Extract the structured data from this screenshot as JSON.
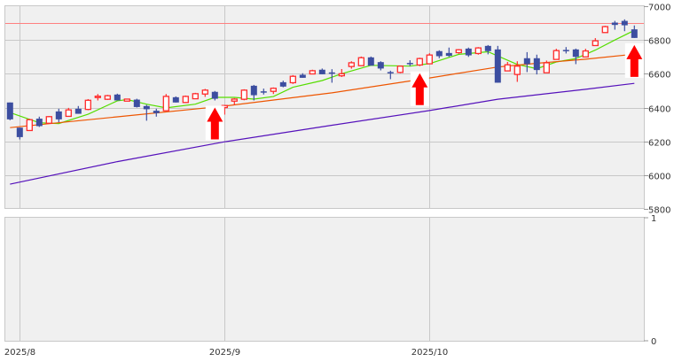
{
  "chart_data": {
    "type": "candlestick",
    "price_axis": {
      "ylim": [
        5800,
        7000
      ],
      "ticks": [
        "7000",
        "6800",
        "6600",
        "6400",
        "6200",
        "6000",
        "5800"
      ],
      "position": "right",
      "grid": true
    },
    "sub_axis": {
      "ticks": [
        "1",
        "0"
      ],
      "ylim": [
        0,
        1
      ]
    },
    "date_labels": [
      {
        "label": "2025/8",
        "candle": 2
      },
      {
        "label": "2025/9",
        "candle": 23
      },
      {
        "label": "2025/10",
        "candle": 44
      }
    ],
    "reference_line": {
      "value": 6900,
      "color": "#ff8080"
    },
    "colors": {
      "up": "#ff2a2a",
      "down": "#3c4ea0",
      "background": "#f0f0f0",
      "grid": "#c8c8c8",
      "arrow": "#ff0000"
    },
    "candles": [
      [
        6430,
        6430,
        6325,
        6330
      ],
      [
        6281,
        6281,
        6211,
        6225
      ],
      [
        6264,
        6333,
        6264,
        6328
      ],
      [
        6334,
        6346,
        6285,
        6290
      ],
      [
        6307,
        6350,
        6305,
        6346
      ],
      [
        6377,
        6393,
        6313,
        6330
      ],
      [
        6348,
        6398,
        6348,
        6386
      ],
      [
        6393,
        6409,
        6363,
        6363
      ],
      [
        6389,
        6450,
        6384,
        6443
      ],
      [
        6463,
        6480,
        6442,
        6467
      ],
      [
        6449,
        6475,
        6445,
        6470
      ],
      [
        6477,
        6482,
        6442,
        6442
      ],
      [
        6438,
        6451,
        6438,
        6450
      ],
      [
        6447,
        6452,
        6400,
        6403
      ],
      [
        6409,
        6416,
        6322,
        6390
      ],
      [
        6381,
        6393,
        6346,
        6367
      ],
      [
        6381,
        6480,
        6381,
        6466
      ],
      [
        6461,
        6466,
        6430,
        6430
      ],
      [
        6430,
        6471,
        6428,
        6466
      ],
      [
        6452,
        6487,
        6450,
        6482
      ],
      [
        6480,
        6510,
        6463,
        6503
      ],
      [
        6493,
        6498,
        6442,
        6452
      ],
      [
        6400,
        6414,
        6358,
        6412
      ],
      [
        6438,
        6456,
        6414,
        6450
      ],
      [
        6449,
        6508,
        6443,
        6503
      ],
      [
        6529,
        6534,
        6442,
        6473
      ],
      [
        6496,
        6512,
        6477,
        6492
      ],
      [
        6496,
        6519,
        6480,
        6514
      ],
      [
        6550,
        6559,
        6520,
        6524
      ],
      [
        6547,
        6592,
        6540,
        6585
      ],
      [
        6594,
        6603,
        6576,
        6576
      ],
      [
        6599,
        6624,
        6598,
        6618
      ],
      [
        6624,
        6631,
        6597,
        6597
      ],
      [
        6608,
        6627,
        6547,
        6600
      ],
      [
        6588,
        6628,
        6581,
        6600
      ],
      [
        6643,
        6674,
        6630,
        6665
      ],
      [
        6648,
        6702,
        6648,
        6695
      ],
      [
        6697,
        6702,
        6648,
        6648
      ],
      [
        6669,
        6674,
        6620,
        6631
      ],
      [
        6610,
        6618,
        6568,
        6607
      ],
      [
        6608,
        6645,
        6603,
        6645
      ],
      [
        6664,
        6680,
        6645,
        6660
      ],
      [
        6652,
        6695,
        6645,
        6690
      ],
      [
        6659,
        6721,
        6659,
        6711
      ],
      [
        6734,
        6739,
        6692,
        6704
      ],
      [
        6723,
        6755,
        6700,
        6706
      ],
      [
        6725,
        6746,
        6718,
        6742
      ],
      [
        6749,
        6755,
        6700,
        6709
      ],
      [
        6720,
        6758,
        6713,
        6753
      ],
      [
        6765,
        6770,
        6715,
        6734
      ],
      [
        6744,
        6765,
        6547,
        6547
      ],
      [
        6617,
        6670,
        6617,
        6653
      ],
      [
        6596,
        6674,
        6552,
        6645
      ],
      [
        6692,
        6728,
        6610,
        6657
      ],
      [
        6692,
        6713,
        6596,
        6622
      ],
      [
        6606,
        6678,
        6606,
        6665
      ],
      [
        6685,
        6748,
        6685,
        6737
      ],
      [
        6741,
        6758,
        6720,
        6734
      ],
      [
        6744,
        6749,
        6657,
        6700
      ],
      [
        6700,
        6748,
        6700,
        6735
      ],
      [
        6767,
        6811,
        6767,
        6795
      ],
      [
        6844,
        6884,
        6844,
        6879
      ],
      [
        6903,
        6913,
        6861,
        6889
      ],
      [
        6913,
        6922,
        6852,
        6887
      ],
      [
        6863,
        6886,
        6812,
        6812
      ]
    ],
    "moving_averages": [
      {
        "color": "#55dd00",
        "points": [
          [
            1,
            6370
          ],
          [
            4,
            6310
          ],
          [
            6,
            6305
          ],
          [
            9,
            6360
          ],
          [
            12,
            6440
          ],
          [
            13,
            6447
          ],
          [
            15,
            6420
          ],
          [
            17,
            6398
          ],
          [
            20,
            6420
          ],
          [
            22,
            6460
          ],
          [
            24,
            6460
          ],
          [
            26,
            6450
          ],
          [
            28,
            6465
          ],
          [
            30,
            6520
          ],
          [
            33,
            6560
          ],
          [
            35,
            6600
          ],
          [
            38,
            6650
          ],
          [
            42,
            6645
          ],
          [
            44,
            6660
          ],
          [
            47,
            6715
          ],
          [
            50,
            6730
          ],
          [
            53,
            6655
          ],
          [
            55,
            6630
          ],
          [
            57,
            6670
          ],
          [
            59,
            6690
          ],
          [
            61,
            6740
          ],
          [
            63,
            6800
          ],
          [
            65,
            6857
          ]
        ]
      },
      {
        "color": "#ee5500",
        "points": [
          [
            1,
            6281
          ],
          [
            12,
            6345
          ],
          [
            23,
            6409
          ],
          [
            34,
            6487
          ],
          [
            44,
            6575
          ],
          [
            51,
            6640
          ],
          [
            55,
            6662
          ],
          [
            60,
            6686
          ],
          [
            65,
            6716
          ]
        ]
      },
      {
        "color": "#5511bb",
        "points": [
          [
            1,
            5946
          ],
          [
            12,
            6080
          ],
          [
            23,
            6197
          ],
          [
            34,
            6295
          ],
          [
            44,
            6382
          ],
          [
            51,
            6449
          ],
          [
            60,
            6508
          ],
          [
            65,
            6543
          ]
        ]
      }
    ],
    "signal_arrows": [
      22,
      43,
      65
    ]
  }
}
